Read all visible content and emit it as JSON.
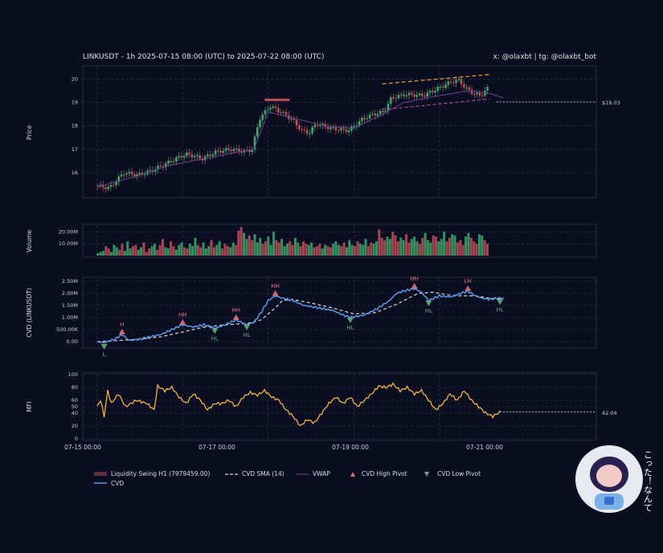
{
  "header": {
    "title": "LINKUSDT - 1h 2025-07-15 08:00 (UTC) to 2025-07-22 08:00 (UTC)",
    "credit": "x: @olaxbt | tg: @olaxbt_bot"
  },
  "colors": {
    "background": "#0b0d21",
    "up": "#3fa86a",
    "down": "#c0505c",
    "cvd": "#5a9be6",
    "cvd_sma": "#d9d9d9",
    "vwap": "#6b3f86",
    "mfi": "#f0b542",
    "high_pivot": "#e0707c",
    "low_pivot": "#5fb27a",
    "trend_upper": "#f0a030",
    "trend_lower": "#b04aa0",
    "liquidity": "#c0505c"
  },
  "x_axis": {
    "ticks": [
      "07-15 00:00",
      "07-17 00:00",
      "07-19 00:00",
      "07-21 00:00"
    ],
    "range_days": [
      0,
      7.2
    ]
  },
  "chart_data": [
    {
      "id": "price",
      "type": "candlestick",
      "ylabel": "Price",
      "ylim": [
        15,
        20.5
      ],
      "yticks": [
        "16",
        "17",
        "18",
        "19",
        "20"
      ],
      "last_price_label": "$19.03",
      "last_price": 19.03,
      "anchors": [
        [
          0.0,
          15.45
        ],
        [
          0.2,
          15.35
        ],
        [
          0.4,
          16.0
        ],
        [
          0.6,
          15.9
        ],
        [
          0.8,
          16.1
        ],
        [
          1.0,
          16.4
        ],
        [
          1.2,
          16.7
        ],
        [
          1.3,
          16.8
        ],
        [
          1.5,
          16.6
        ],
        [
          1.7,
          16.9
        ],
        [
          1.9,
          17.0
        ],
        [
          2.1,
          16.9
        ],
        [
          2.2,
          17.0
        ],
        [
          2.3,
          18.3
        ],
        [
          2.45,
          18.85
        ],
        [
          2.6,
          18.6
        ],
        [
          2.75,
          18.3
        ],
        [
          2.9,
          17.8
        ],
        [
          3.0,
          17.7
        ],
        [
          3.1,
          18.1
        ],
        [
          3.3,
          17.9
        ],
        [
          3.55,
          17.8
        ],
        [
          3.75,
          18.3
        ],
        [
          3.9,
          18.5
        ],
        [
          4.05,
          18.6
        ],
        [
          4.15,
          19.2
        ],
        [
          4.35,
          19.35
        ],
        [
          4.6,
          19.3
        ],
        [
          4.8,
          19.6
        ],
        [
          5.0,
          19.9
        ],
        [
          5.1,
          19.95
        ],
        [
          5.2,
          19.6
        ],
        [
          5.3,
          19.4
        ],
        [
          5.4,
          19.3
        ],
        [
          5.5,
          19.6
        ],
        [
          5.6,
          19.0
        ],
        [
          5.7,
          19.03
        ]
      ],
      "vwap_anchors": [
        [
          0.0,
          15.4
        ],
        [
          0.5,
          15.8
        ],
        [
          1.0,
          16.3
        ],
        [
          1.5,
          16.6
        ],
        [
          2.0,
          16.9
        ],
        [
          2.2,
          17.0
        ],
        [
          2.4,
          18.6
        ],
        [
          2.8,
          18.3
        ],
        [
          3.2,
          18.0
        ],
        [
          3.6,
          17.9
        ],
        [
          4.0,
          18.5
        ],
        [
          4.3,
          19.0
        ],
        [
          4.8,
          19.3
        ],
        [
          5.2,
          19.5
        ],
        [
          5.5,
          19.4
        ],
        [
          5.7,
          19.2
        ]
      ],
      "liquidity_swing": {
        "label": "Liquidity Swing H1 (7979459.00)",
        "x": [
          2.35,
          2.7
        ],
        "y": 19.1
      },
      "trendlines": [
        {
          "name": "upper",
          "x": [
            4.0,
            5.5
          ],
          "y": [
            19.8,
            20.2
          ]
        },
        {
          "name": "lower",
          "x": [
            4.0,
            5.5
          ],
          "y": [
            18.7,
            19.15
          ]
        }
      ]
    },
    {
      "id": "volume",
      "type": "bar",
      "ylabel": "Volume",
      "yticks": [
        "10.00M",
        "20.00M"
      ],
      "ylim": [
        0,
        25
      ],
      "values": [
        2,
        3,
        4,
        8,
        6,
        3,
        9,
        7,
        5,
        10,
        4,
        12,
        6,
        8,
        9,
        5,
        7,
        11,
        3,
        6,
        8,
        10,
        5,
        9,
        14,
        7,
        6,
        12,
        8,
        5,
        9,
        11,
        7,
        6,
        10,
        8,
        15,
        9,
        7,
        11,
        6,
        8,
        13,
        7,
        9,
        12,
        6,
        10,
        8,
        7,
        11,
        9,
        21,
        24,
        19,
        14,
        17,
        13,
        18,
        11,
        15,
        10,
        12,
        16,
        9,
        20,
        13,
        11,
        14,
        8,
        10,
        12,
        9,
        15,
        11,
        8,
        12,
        10,
        9,
        11,
        7,
        8,
        10,
        6,
        9,
        8,
        7,
        10,
        12,
        9,
        8,
        11,
        7,
        13,
        9,
        8,
        12,
        10,
        9,
        14,
        8,
        11,
        10,
        12,
        22,
        15,
        13,
        16,
        14,
        20,
        17,
        12,
        15,
        13,
        18,
        11,
        14,
        16,
        12,
        10,
        15,
        19,
        13,
        11,
        17,
        16,
        12,
        14,
        20,
        12,
        15,
        18,
        17,
        11,
        13,
        9,
        16,
        19,
        15,
        12,
        10,
        18,
        17,
        13,
        10
      ]
    },
    {
      "id": "cvd",
      "type": "line",
      "ylabel": "CVD (LINKUSDT)",
      "ylim": [
        -0.2,
        2.6
      ],
      "yticks": [
        "0.00",
        "500.00K",
        "1.00M",
        "1.50M",
        "2.00M",
        "2.50M"
      ],
      "series": [
        {
          "name": "CVD",
          "anchors": [
            [
              0.0,
              0.0
            ],
            [
              0.1,
              -0.05
            ],
            [
              0.25,
              0.1
            ],
            [
              0.35,
              0.3
            ],
            [
              0.45,
              0.05
            ],
            [
              0.6,
              0.1
            ],
            [
              0.75,
              0.2
            ],
            [
              0.9,
              0.3
            ],
            [
              1.05,
              0.5
            ],
            [
              1.2,
              0.7
            ],
            [
              1.35,
              0.6
            ],
            [
              1.5,
              0.7
            ],
            [
              1.65,
              0.55
            ],
            [
              1.8,
              0.7
            ],
            [
              1.95,
              0.9
            ],
            [
              2.1,
              0.7
            ],
            [
              2.2,
              0.8
            ],
            [
              2.3,
              1.2
            ],
            [
              2.4,
              1.7
            ],
            [
              2.5,
              1.9
            ],
            [
              2.6,
              1.8
            ],
            [
              2.75,
              1.7
            ],
            [
              2.9,
              1.5
            ],
            [
              3.1,
              1.4
            ],
            [
              3.3,
              1.3
            ],
            [
              3.45,
              1.1
            ],
            [
              3.55,
              1.0
            ],
            [
              3.75,
              1.1
            ],
            [
              3.95,
              1.4
            ],
            [
              4.1,
              1.7
            ],
            [
              4.2,
              2.0
            ],
            [
              4.3,
              2.1
            ],
            [
              4.45,
              2.2
            ],
            [
              4.55,
              2.05
            ],
            [
              4.65,
              1.7
            ],
            [
              4.8,
              1.9
            ],
            [
              4.95,
              1.85
            ],
            [
              5.1,
              2.0
            ],
            [
              5.2,
              2.1
            ],
            [
              5.3,
              1.9
            ],
            [
              5.4,
              1.8
            ],
            [
              5.5,
              1.75
            ],
            [
              5.6,
              1.8
            ],
            [
              5.7,
              1.8
            ]
          ]
        },
        {
          "name": "CVD SMA (14)",
          "anchors": [
            [
              0.0,
              0.0
            ],
            [
              0.3,
              0.05
            ],
            [
              0.6,
              0.1
            ],
            [
              0.9,
              0.2
            ],
            [
              1.2,
              0.4
            ],
            [
              1.5,
              0.6
            ],
            [
              1.8,
              0.7
            ],
            [
              2.1,
              0.75
            ],
            [
              2.3,
              0.9
            ],
            [
              2.5,
              1.4
            ],
            [
              2.6,
              1.7
            ],
            [
              2.75,
              1.75
            ],
            [
              3.0,
              1.6
            ],
            [
              3.3,
              1.4
            ],
            [
              3.6,
              1.15
            ],
            [
              3.9,
              1.2
            ],
            [
              4.2,
              1.55
            ],
            [
              4.5,
              2.0
            ],
            [
              4.7,
              2.05
            ],
            [
              5.0,
              1.9
            ],
            [
              5.3,
              1.9
            ],
            [
              5.5,
              1.8
            ],
            [
              5.7,
              1.75
            ]
          ]
        }
      ],
      "pivots": [
        {
          "type": "low",
          "label": "L",
          "x": 0.1,
          "y": -0.1
        },
        {
          "type": "high",
          "label": "H",
          "x": 0.35,
          "y": 0.3
        },
        {
          "type": "high",
          "label": "HH",
          "x": 1.2,
          "y": 0.7
        },
        {
          "type": "low",
          "label": "HL",
          "x": 1.65,
          "y": 0.55
        },
        {
          "type": "high",
          "label": "HH",
          "x": 1.95,
          "y": 0.9
        },
        {
          "type": "low",
          "label": "HL",
          "x": 2.1,
          "y": 0.7
        },
        {
          "type": "high",
          "label": "HH",
          "x": 2.5,
          "y": 1.9
        },
        {
          "type": "low",
          "label": "HL",
          "x": 3.55,
          "y": 1.0
        },
        {
          "type": "high",
          "label": "HH",
          "x": 4.45,
          "y": 2.2
        },
        {
          "type": "low",
          "label": "HL",
          "x": 4.65,
          "y": 1.7
        },
        {
          "type": "high",
          "label": "LH",
          "x": 5.2,
          "y": 2.1
        },
        {
          "type": "low",
          "label": "HL",
          "x": 5.65,
          "y": 1.75
        }
      ]
    },
    {
      "id": "mfi",
      "type": "line",
      "ylabel": "MFI",
      "ylim": [
        0,
        100
      ],
      "yticks": [
        "0",
        "20",
        "40",
        "50",
        "60",
        "80",
        "100"
      ],
      "last_value_label": "42.04",
      "last_value": 42.04,
      "anchors": [
        [
          0.0,
          50
        ],
        [
          0.05,
          60
        ],
        [
          0.1,
          35
        ],
        [
          0.15,
          75
        ],
        [
          0.2,
          55
        ],
        [
          0.3,
          70
        ],
        [
          0.4,
          50
        ],
        [
          0.55,
          60
        ],
        [
          0.7,
          55
        ],
        [
          0.8,
          45
        ],
        [
          0.85,
          82
        ],
        [
          0.95,
          75
        ],
        [
          1.05,
          80
        ],
        [
          1.15,
          65
        ],
        [
          1.25,
          55
        ],
        [
          1.35,
          70
        ],
        [
          1.45,
          60
        ],
        [
          1.55,
          45
        ],
        [
          1.65,
          55
        ],
        [
          1.75,
          55
        ],
        [
          1.85,
          60
        ],
        [
          1.95,
          50
        ],
        [
          2.05,
          65
        ],
        [
          2.15,
          72
        ],
        [
          2.25,
          68
        ],
        [
          2.35,
          75
        ],
        [
          2.45,
          65
        ],
        [
          2.55,
          60
        ],
        [
          2.65,
          45
        ],
        [
          2.75,
          35
        ],
        [
          2.85,
          20
        ],
        [
          2.95,
          30
        ],
        [
          3.05,
          25
        ],
        [
          3.15,
          40
        ],
        [
          3.25,
          55
        ],
        [
          3.35,
          65
        ],
        [
          3.45,
          55
        ],
        [
          3.55,
          65
        ],
        [
          3.65,
          50
        ],
        [
          3.75,
          60
        ],
        [
          3.85,
          70
        ],
        [
          3.95,
          82
        ],
        [
          4.05,
          80
        ],
        [
          4.15,
          85
        ],
        [
          4.25,
          75
        ],
        [
          4.35,
          80
        ],
        [
          4.45,
          70
        ],
        [
          4.55,
          75
        ],
        [
          4.65,
          60
        ],
        [
          4.75,
          45
        ],
        [
          4.85,
          55
        ],
        [
          4.95,
          70
        ],
        [
          5.05,
          60
        ],
        [
          5.15,
          75
        ],
        [
          5.25,
          60
        ],
        [
          5.35,
          50
        ],
        [
          5.45,
          40
        ],
        [
          5.55,
          35
        ],
        [
          5.65,
          42
        ]
      ]
    }
  ],
  "legend": {
    "items": [
      {
        "key": "liquidity",
        "label": "Liquidity Swing H1 (7979459.00)"
      },
      {
        "key": "cvd_sma",
        "label": "CVD SMA (14)"
      },
      {
        "key": "vwap",
        "label": "VWAP"
      },
      {
        "key": "high_pivot",
        "label": "CVD High Pivot"
      },
      {
        "key": "low_pivot",
        "label": "CVD Low Pivot"
      },
      {
        "key": "cvd",
        "label": "CVD"
      }
    ]
  },
  "mascot": {
    "caption": "こった！なんて",
    "icon": "hooded-character-icon"
  }
}
